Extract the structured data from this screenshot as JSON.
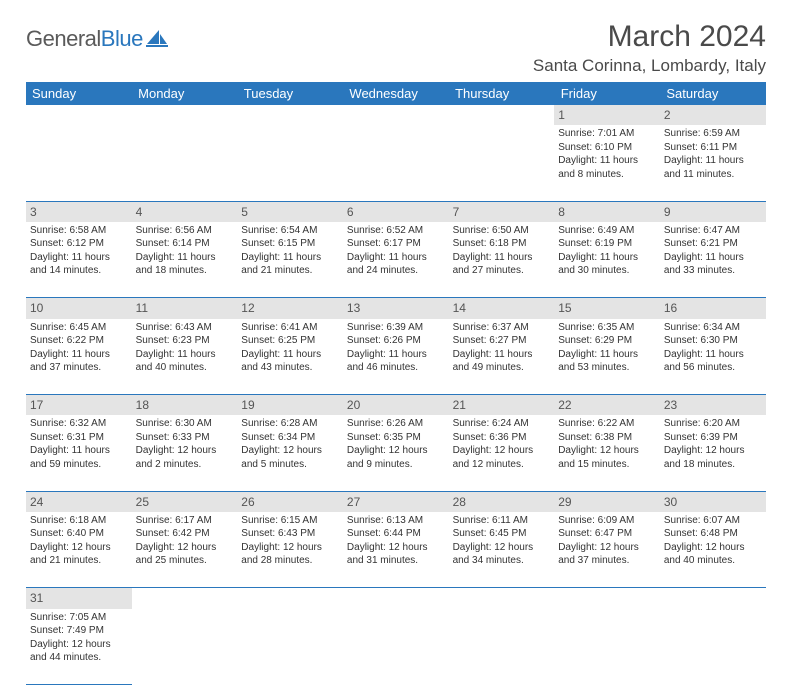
{
  "brand": {
    "name_a": "General",
    "name_b": "Blue"
  },
  "title": "March 2024",
  "location": "Santa Corinna, Lombardy, Italy",
  "colors": {
    "header_bg": "#2a77bd",
    "header_fg": "#ffffff",
    "daynum_bg": "#e4e4e4",
    "cell_border": "#2a77bd",
    "text": "#333333"
  },
  "day_headers": [
    "Sunday",
    "Monday",
    "Tuesday",
    "Wednesday",
    "Thursday",
    "Friday",
    "Saturday"
  ],
  "weeks": [
    [
      null,
      null,
      null,
      null,
      null,
      {
        "n": "1",
        "sr": "Sunrise: 7:01 AM",
        "ss": "Sunset: 6:10 PM",
        "d1": "Daylight: 11 hours",
        "d2": "and 8 minutes."
      },
      {
        "n": "2",
        "sr": "Sunrise: 6:59 AM",
        "ss": "Sunset: 6:11 PM",
        "d1": "Daylight: 11 hours",
        "d2": "and 11 minutes."
      }
    ],
    [
      {
        "n": "3",
        "sr": "Sunrise: 6:58 AM",
        "ss": "Sunset: 6:12 PM",
        "d1": "Daylight: 11 hours",
        "d2": "and 14 minutes."
      },
      {
        "n": "4",
        "sr": "Sunrise: 6:56 AM",
        "ss": "Sunset: 6:14 PM",
        "d1": "Daylight: 11 hours",
        "d2": "and 18 minutes."
      },
      {
        "n": "5",
        "sr": "Sunrise: 6:54 AM",
        "ss": "Sunset: 6:15 PM",
        "d1": "Daylight: 11 hours",
        "d2": "and 21 minutes."
      },
      {
        "n": "6",
        "sr": "Sunrise: 6:52 AM",
        "ss": "Sunset: 6:17 PM",
        "d1": "Daylight: 11 hours",
        "d2": "and 24 minutes."
      },
      {
        "n": "7",
        "sr": "Sunrise: 6:50 AM",
        "ss": "Sunset: 6:18 PM",
        "d1": "Daylight: 11 hours",
        "d2": "and 27 minutes."
      },
      {
        "n": "8",
        "sr": "Sunrise: 6:49 AM",
        "ss": "Sunset: 6:19 PM",
        "d1": "Daylight: 11 hours",
        "d2": "and 30 minutes."
      },
      {
        "n": "9",
        "sr": "Sunrise: 6:47 AM",
        "ss": "Sunset: 6:21 PM",
        "d1": "Daylight: 11 hours",
        "d2": "and 33 minutes."
      }
    ],
    [
      {
        "n": "10",
        "sr": "Sunrise: 6:45 AM",
        "ss": "Sunset: 6:22 PM",
        "d1": "Daylight: 11 hours",
        "d2": "and 37 minutes."
      },
      {
        "n": "11",
        "sr": "Sunrise: 6:43 AM",
        "ss": "Sunset: 6:23 PM",
        "d1": "Daylight: 11 hours",
        "d2": "and 40 minutes."
      },
      {
        "n": "12",
        "sr": "Sunrise: 6:41 AM",
        "ss": "Sunset: 6:25 PM",
        "d1": "Daylight: 11 hours",
        "d2": "and 43 minutes."
      },
      {
        "n": "13",
        "sr": "Sunrise: 6:39 AM",
        "ss": "Sunset: 6:26 PM",
        "d1": "Daylight: 11 hours",
        "d2": "and 46 minutes."
      },
      {
        "n": "14",
        "sr": "Sunrise: 6:37 AM",
        "ss": "Sunset: 6:27 PM",
        "d1": "Daylight: 11 hours",
        "d2": "and 49 minutes."
      },
      {
        "n": "15",
        "sr": "Sunrise: 6:35 AM",
        "ss": "Sunset: 6:29 PM",
        "d1": "Daylight: 11 hours",
        "d2": "and 53 minutes."
      },
      {
        "n": "16",
        "sr": "Sunrise: 6:34 AM",
        "ss": "Sunset: 6:30 PM",
        "d1": "Daylight: 11 hours",
        "d2": "and 56 minutes."
      }
    ],
    [
      {
        "n": "17",
        "sr": "Sunrise: 6:32 AM",
        "ss": "Sunset: 6:31 PM",
        "d1": "Daylight: 11 hours",
        "d2": "and 59 minutes."
      },
      {
        "n": "18",
        "sr": "Sunrise: 6:30 AM",
        "ss": "Sunset: 6:33 PM",
        "d1": "Daylight: 12 hours",
        "d2": "and 2 minutes."
      },
      {
        "n": "19",
        "sr": "Sunrise: 6:28 AM",
        "ss": "Sunset: 6:34 PM",
        "d1": "Daylight: 12 hours",
        "d2": "and 5 minutes."
      },
      {
        "n": "20",
        "sr": "Sunrise: 6:26 AM",
        "ss": "Sunset: 6:35 PM",
        "d1": "Daylight: 12 hours",
        "d2": "and 9 minutes."
      },
      {
        "n": "21",
        "sr": "Sunrise: 6:24 AM",
        "ss": "Sunset: 6:36 PM",
        "d1": "Daylight: 12 hours",
        "d2": "and 12 minutes."
      },
      {
        "n": "22",
        "sr": "Sunrise: 6:22 AM",
        "ss": "Sunset: 6:38 PM",
        "d1": "Daylight: 12 hours",
        "d2": "and 15 minutes."
      },
      {
        "n": "23",
        "sr": "Sunrise: 6:20 AM",
        "ss": "Sunset: 6:39 PM",
        "d1": "Daylight: 12 hours",
        "d2": "and 18 minutes."
      }
    ],
    [
      {
        "n": "24",
        "sr": "Sunrise: 6:18 AM",
        "ss": "Sunset: 6:40 PM",
        "d1": "Daylight: 12 hours",
        "d2": "and 21 minutes."
      },
      {
        "n": "25",
        "sr": "Sunrise: 6:17 AM",
        "ss": "Sunset: 6:42 PM",
        "d1": "Daylight: 12 hours",
        "d2": "and 25 minutes."
      },
      {
        "n": "26",
        "sr": "Sunrise: 6:15 AM",
        "ss": "Sunset: 6:43 PM",
        "d1": "Daylight: 12 hours",
        "d2": "and 28 minutes."
      },
      {
        "n": "27",
        "sr": "Sunrise: 6:13 AM",
        "ss": "Sunset: 6:44 PM",
        "d1": "Daylight: 12 hours",
        "d2": "and 31 minutes."
      },
      {
        "n": "28",
        "sr": "Sunrise: 6:11 AM",
        "ss": "Sunset: 6:45 PM",
        "d1": "Daylight: 12 hours",
        "d2": "and 34 minutes."
      },
      {
        "n": "29",
        "sr": "Sunrise: 6:09 AM",
        "ss": "Sunset: 6:47 PM",
        "d1": "Daylight: 12 hours",
        "d2": "and 37 minutes."
      },
      {
        "n": "30",
        "sr": "Sunrise: 6:07 AM",
        "ss": "Sunset: 6:48 PM",
        "d1": "Daylight: 12 hours",
        "d2": "and 40 minutes."
      }
    ],
    [
      {
        "n": "31",
        "sr": "Sunrise: 7:05 AM",
        "ss": "Sunset: 7:49 PM",
        "d1": "Daylight: 12 hours",
        "d2": "and 44 minutes."
      },
      null,
      null,
      null,
      null,
      null,
      null
    ]
  ]
}
